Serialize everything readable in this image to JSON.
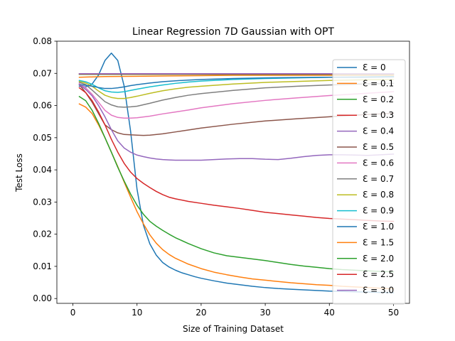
{
  "chart_data": {
    "type": "line",
    "title": "Linear Regression 7D Gaussian with OPT",
    "xlabel": "Size of Training Dataset",
    "ylabel": "Test Loss",
    "xlim": [
      -2.5,
      52.5
    ],
    "ylim": [
      -0.0015,
      0.08
    ],
    "xticks": [
      0,
      10,
      20,
      30,
      40,
      50
    ],
    "yticks": [
      0.0,
      0.01,
      0.02,
      0.03,
      0.04,
      0.05,
      0.06,
      0.07,
      0.08
    ],
    "ytick_labels": [
      "0.00",
      "0.01",
      "0.02",
      "0.03",
      "0.04",
      "0.05",
      "0.06",
      "0.07",
      "0.08"
    ],
    "grid": false,
    "legend_position": "right",
    "series": [
      {
        "name": "Ɛ = 0",
        "color": "#1f77b4",
        "x": [
          1,
          2,
          3,
          4,
          5,
          6,
          7,
          8,
          9,
          10,
          11,
          12,
          13,
          14,
          15,
          16,
          17,
          18,
          19,
          20,
          22,
          24,
          26,
          28,
          30,
          32,
          34,
          36,
          38,
          40,
          42,
          44,
          46,
          48,
          50
        ],
        "y": [
          0.066,
          0.0658,
          0.0667,
          0.0695,
          0.074,
          0.0763,
          0.074,
          0.066,
          0.052,
          0.034,
          0.0228,
          0.017,
          0.0135,
          0.0112,
          0.0098,
          0.0088,
          0.008,
          0.0074,
          0.0068,
          0.0063,
          0.0055,
          0.0048,
          0.0043,
          0.0038,
          0.0034,
          0.0031,
          0.0029,
          0.0027,
          0.0025,
          0.0023,
          0.0022,
          0.0021,
          0.002,
          0.0019,
          0.0018
        ]
      },
      {
        "name": "Ɛ = 0.1",
        "color": "#ff7f0e",
        "x": [
          1,
          5,
          10,
          15,
          20,
          25,
          30,
          35,
          40,
          45,
          50
        ],
        "y": [
          0.0688,
          0.069,
          0.0691,
          0.0692,
          0.0693,
          0.0694,
          0.0694,
          0.0694,
          0.0694,
          0.0694,
          0.0694
        ]
      },
      {
        "name": "Ɛ = 0.2",
        "color": "#2ca02c",
        "x": [
          1,
          10,
          20,
          30,
          40,
          50
        ],
        "y": [
          0.0697,
          0.0697,
          0.0697,
          0.0697,
          0.0697,
          0.0697
        ]
      },
      {
        "name": "Ɛ = 0.3",
        "color": "#d62728",
        "x": [
          1,
          10,
          20,
          30,
          40,
          50
        ],
        "y": [
          0.0698,
          0.0698,
          0.0698,
          0.0698,
          0.0698,
          0.0698
        ]
      },
      {
        "name": "Ɛ = 0.4",
        "color": "#9467bd",
        "x": [
          1,
          10,
          20,
          30,
          40,
          50
        ],
        "y": [
          0.0699,
          0.0699,
          0.0699,
          0.0699,
          0.0699,
          0.0699
        ]
      },
      {
        "name": "Ɛ = 0.5",
        "color": "#8c564b",
        "x": [
          1,
          2,
          3,
          4,
          5,
          6,
          7,
          8,
          9,
          10,
          11,
          12,
          14,
          16,
          18,
          20,
          25,
          30,
          35,
          40,
          45,
          50
        ],
        "y": [
          0.0665,
          0.064,
          0.061,
          0.0575,
          0.054,
          0.0525,
          0.0515,
          0.051,
          0.0509,
          0.0508,
          0.0507,
          0.0508,
          0.0512,
          0.0518,
          0.0524,
          0.053,
          0.0542,
          0.0552,
          0.0559,
          0.0565,
          0.0571,
          0.0576
        ]
      },
      {
        "name": "Ɛ = 0.6",
        "color": "#e377c2",
        "x": [
          1,
          2,
          3,
          4,
          5,
          6,
          7,
          8,
          9,
          10,
          12,
          14,
          16,
          18,
          20,
          25,
          30,
          35,
          40,
          45,
          50
        ],
        "y": [
          0.0668,
          0.0655,
          0.0635,
          0.061,
          0.0585,
          0.057,
          0.0563,
          0.0561,
          0.0561,
          0.0562,
          0.0567,
          0.0574,
          0.058,
          0.0586,
          0.0593,
          0.0606,
          0.0616,
          0.0624,
          0.0631,
          0.0637,
          0.0643
        ]
      },
      {
        "name": "Ɛ = 0.7",
        "color": "#7f7f7f",
        "x": [
          1,
          2,
          3,
          4,
          5,
          6,
          7,
          8,
          9,
          10,
          12,
          14,
          16,
          18,
          20,
          25,
          30,
          35,
          40,
          45,
          50
        ],
        "y": [
          0.0672,
          0.0665,
          0.0648,
          0.063,
          0.0612,
          0.0602,
          0.0596,
          0.0595,
          0.0596,
          0.0598,
          0.0607,
          0.0617,
          0.0625,
          0.0632,
          0.0637,
          0.0647,
          0.0655,
          0.066,
          0.0664,
          0.0667,
          0.0669
        ]
      },
      {
        "name": "Ɛ = 0.8",
        "color": "#bcbd22",
        "x": [
          1,
          2,
          3,
          4,
          5,
          6,
          7,
          8,
          9,
          10,
          12,
          14,
          16,
          18,
          20,
          25,
          30,
          35,
          40,
          45,
          50
        ],
        "y": [
          0.0675,
          0.067,
          0.066,
          0.0645,
          0.0632,
          0.0625,
          0.0622,
          0.0622,
          0.0625,
          0.0629,
          0.0638,
          0.0646,
          0.0652,
          0.0657,
          0.066,
          0.0667,
          0.0672,
          0.0675,
          0.0678,
          0.068,
          0.0681
        ]
      },
      {
        "name": "Ɛ = 0.9",
        "color": "#17becf",
        "x": [
          1,
          2,
          3,
          4,
          5,
          6,
          7,
          8,
          9,
          10,
          12,
          14,
          16,
          18,
          20,
          25,
          30,
          35,
          40,
          45,
          50
        ],
        "y": [
          0.0678,
          0.0674,
          0.0666,
          0.0655,
          0.0646,
          0.0642,
          0.0641,
          0.0643,
          0.0647,
          0.0651,
          0.0658,
          0.0664,
          0.0669,
          0.0673,
          0.0676,
          0.0681,
          0.0684,
          0.0686,
          0.0688,
          0.0689,
          0.069
        ]
      },
      {
        "name": "Ɛ = 1.0",
        "color": "#1f77b4",
        "x": [
          1,
          2,
          3,
          4,
          5,
          6,
          7,
          8,
          9,
          10,
          12,
          14,
          16,
          18,
          20,
          25,
          30,
          35,
          40,
          45,
          50
        ],
        "y": [
          0.0665,
          0.0663,
          0.066,
          0.0656,
          0.0653,
          0.0653,
          0.0655,
          0.0658,
          0.0662,
          0.0665,
          0.067,
          0.0674,
          0.0677,
          0.0679,
          0.0681,
          0.0684,
          0.0686,
          0.0687,
          0.0688,
          0.0688,
          0.0689
        ]
      },
      {
        "name": "Ɛ = 1.5",
        "color": "#ff7f0e",
        "x": [
          1,
          2,
          3,
          4,
          5,
          6,
          7,
          8,
          9,
          10,
          11,
          12,
          13,
          14,
          15,
          16,
          18,
          20,
          22,
          24,
          26,
          28,
          30,
          32,
          34,
          36,
          38,
          40,
          42,
          44,
          46,
          48,
          50
        ],
        "y": [
          0.0605,
          0.0595,
          0.0575,
          0.054,
          0.05,
          0.0455,
          0.041,
          0.0362,
          0.0315,
          0.027,
          0.0232,
          0.0198,
          0.0172,
          0.0152,
          0.0137,
          0.0125,
          0.0107,
          0.0093,
          0.0082,
          0.0074,
          0.0067,
          0.0061,
          0.0057,
          0.0053,
          0.0049,
          0.0046,
          0.0043,
          0.0041,
          0.0038,
          0.0036,
          0.0034,
          0.0032,
          0.003
        ]
      },
      {
        "name": "Ɛ = 2.0",
        "color": "#2ca02c",
        "x": [
          1,
          2,
          3,
          4,
          5,
          6,
          7,
          8,
          9,
          10,
          11,
          12,
          13,
          14,
          15,
          16,
          18,
          20,
          22,
          24,
          26,
          28,
          30,
          32,
          34,
          36,
          38,
          40,
          42,
          44,
          46,
          48,
          50
        ],
        "y": [
          0.0628,
          0.0615,
          0.0585,
          0.0545,
          0.05,
          0.0455,
          0.0408,
          0.0365,
          0.0325,
          0.029,
          0.0262,
          0.024,
          0.0225,
          0.0212,
          0.02,
          0.0189,
          0.0171,
          0.0155,
          0.0142,
          0.0133,
          0.0128,
          0.0123,
          0.0118,
          0.0112,
          0.0106,
          0.0101,
          0.0097,
          0.0093,
          0.009,
          0.0088,
          0.0086,
          0.0084,
          0.0083
        ]
      },
      {
        "name": "Ɛ = 2.5",
        "color": "#d62728",
        "x": [
          1,
          2,
          3,
          4,
          5,
          6,
          7,
          8,
          9,
          10,
          11,
          12,
          13,
          14,
          15,
          16,
          18,
          20,
          22,
          24,
          26,
          28,
          30,
          32,
          34,
          36,
          38,
          40,
          42,
          44,
          46,
          48,
          50
        ],
        "y": [
          0.0655,
          0.064,
          0.0615,
          0.058,
          0.054,
          0.0495,
          0.0455,
          0.042,
          0.0393,
          0.0373,
          0.0358,
          0.0345,
          0.0333,
          0.0323,
          0.0315,
          0.031,
          0.0302,
          0.0296,
          0.029,
          0.0285,
          0.028,
          0.0274,
          0.0268,
          0.0264,
          0.026,
          0.0256,
          0.0252,
          0.0249,
          0.0247,
          0.0245,
          0.0243,
          0.0241,
          0.024
        ]
      },
      {
        "name": "Ɛ = 3.0",
        "color": "#9467bd",
        "x": [
          1,
          2,
          3,
          4,
          5,
          6,
          7,
          8,
          9,
          10,
          11,
          12,
          13,
          14,
          15,
          16,
          18,
          20,
          22,
          24,
          26,
          28,
          30,
          32,
          34,
          36,
          38,
          40,
          42,
          44,
          46,
          48,
          50
        ],
        "y": [
          0.0665,
          0.065,
          0.063,
          0.06,
          0.0565,
          0.0525,
          0.049,
          0.0468,
          0.0455,
          0.0446,
          0.0441,
          0.0437,
          0.0434,
          0.0432,
          0.0431,
          0.043,
          0.043,
          0.043,
          0.0432,
          0.0434,
          0.0435,
          0.0435,
          0.0433,
          0.0432,
          0.0436,
          0.0441,
          0.0445,
          0.0447,
          0.0447,
          0.0446,
          0.0445,
          0.0447,
          0.0449
        ]
      }
    ]
  }
}
